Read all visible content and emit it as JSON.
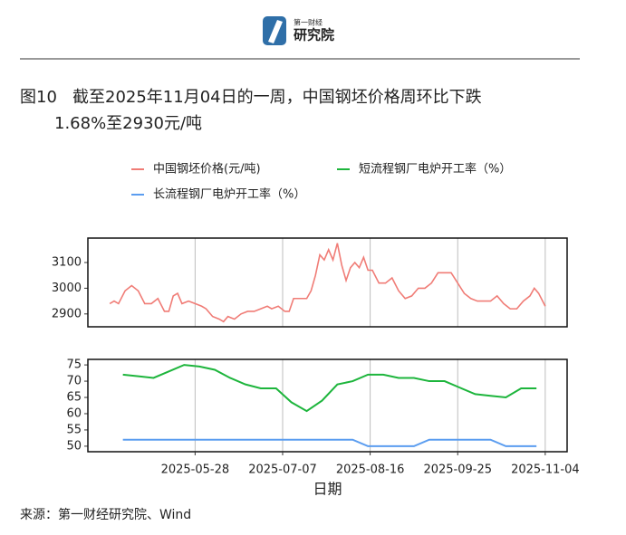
{
  "logo": {
    "top": "第一财经",
    "main": "研究院"
  },
  "figure_title": {
    "label": "图10",
    "line1": "截至2025年11月04日的一周，中国钢坯价格周环比下跌",
    "line2": "1.68%至2930元/吨"
  },
  "source": "来源：第一财经研究院、Wind",
  "chart_data": [
    {
      "type": "line",
      "x": [
        "2025-04-19",
        "2025-04-21",
        "2025-04-23",
        "2025-04-26",
        "2025-04-29",
        "2025-05-02",
        "2025-05-05",
        "2025-05-08",
        "2025-05-11",
        "2025-05-14",
        "2025-05-16",
        "2025-05-18",
        "2025-05-20",
        "2025-05-22",
        "2025-05-25",
        "2025-05-28",
        "2025-05-31",
        "2025-06-02",
        "2025-06-05",
        "2025-06-08",
        "2025-06-10",
        "2025-06-12",
        "2025-06-15",
        "2025-06-18",
        "2025-06-21",
        "2025-06-24",
        "2025-06-27",
        "2025-06-30",
        "2025-07-02",
        "2025-07-05",
        "2025-07-08",
        "2025-07-10",
        "2025-07-12",
        "2025-07-15",
        "2025-07-18",
        "2025-07-20",
        "2025-07-22",
        "2025-07-24",
        "2025-07-26",
        "2025-07-28",
        "2025-07-30",
        "2025-08-01",
        "2025-08-03",
        "2025-08-05",
        "2025-08-07",
        "2025-08-09",
        "2025-08-11",
        "2025-08-13",
        "2025-08-15",
        "2025-08-17",
        "2025-08-20",
        "2025-08-23",
        "2025-08-26",
        "2025-08-29",
        "2025-09-01",
        "2025-09-04",
        "2025-09-07",
        "2025-09-10",
        "2025-09-13",
        "2025-09-16",
        "2025-09-19",
        "2025-09-22",
        "2025-09-25",
        "2025-09-28",
        "2025-10-01",
        "2025-10-04",
        "2025-10-07",
        "2025-10-10",
        "2025-10-13",
        "2025-10-16",
        "2025-10-19",
        "2025-10-22",
        "2025-10-25",
        "2025-10-28",
        "2025-10-30",
        "2025-11-01",
        "2025-11-04"
      ],
      "series": [
        {
          "name": "中国钢坯价格(元/吨)",
          "color": "#f07c76",
          "values": [
            2940,
            2950,
            2940,
            2990,
            3010,
            2990,
            2940,
            2940,
            2960,
            2910,
            2910,
            2970,
            2980,
            2940,
            2950,
            2940,
            2930,
            2920,
            2890,
            2880,
            2870,
            2890,
            2880,
            2900,
            2910,
            2910,
            2920,
            2930,
            2920,
            2930,
            2910,
            2910,
            2960,
            2960,
            2960,
            2990,
            3050,
            3130,
            3110,
            3150,
            3110,
            3175,
            3090,
            3030,
            3080,
            3100,
            3080,
            3120,
            3070,
            3070,
            3020,
            3020,
            3040,
            2990,
            2960,
            2970,
            3000,
            3000,
            3020,
            3060,
            3060,
            3060,
            3020,
            2980,
            2960,
            2950,
            2950,
            2950,
            2970,
            2940,
            2920,
            2920,
            2950,
            2970,
            3000,
            2980,
            2930
          ]
        }
      ],
      "ylim": [
        2850,
        3195
      ],
      "yticks": [
        2900,
        3000,
        3100
      ]
    },
    {
      "type": "line",
      "x": [
        "2025-04-25",
        "2025-05-02",
        "2025-05-09",
        "2025-05-16",
        "2025-05-23",
        "2025-05-30",
        "2025-06-06",
        "2025-06-13",
        "2025-06-20",
        "2025-06-27",
        "2025-07-04",
        "2025-07-11",
        "2025-07-18",
        "2025-07-25",
        "2025-08-01",
        "2025-08-08",
        "2025-08-15",
        "2025-08-22",
        "2025-08-29",
        "2025-09-05",
        "2025-09-12",
        "2025-09-19",
        "2025-09-26",
        "2025-10-03",
        "2025-10-10",
        "2025-10-17",
        "2025-10-24",
        "2025-10-31"
      ],
      "series": [
        {
          "name": "短流程钢厂电炉开工率（%）",
          "color": "#1db53c",
          "values": [
            72,
            71.5,
            71,
            73,
            75,
            74.5,
            73.5,
            71,
            69,
            67.8,
            67.8,
            63.5,
            60.8,
            64,
            69,
            70,
            72,
            72,
            71,
            71,
            70,
            70,
            68,
            66,
            65.5,
            65,
            67.8,
            67.8
          ]
        },
        {
          "name": "长流程钢厂电炉开工率（%）",
          "color": "#5b9df0",
          "values": [
            52,
            52,
            52,
            52,
            52,
            52,
            52,
            52,
            52,
            52,
            52,
            52,
            52,
            52,
            52,
            52,
            50,
            50,
            50,
            50,
            52,
            52,
            52,
            52,
            52,
            50,
            50,
            50
          ]
        }
      ],
      "ylim": [
        48.3,
        76.7
      ],
      "yticks": [
        50,
        55,
        60,
        65,
        70,
        75
      ],
      "xlim": [
        "2025-04-09",
        "2025-11-14"
      ],
      "xticks": [
        "2025-05-28",
        "2025-07-07",
        "2025-08-16",
        "2025-09-25",
        "2025-11-04"
      ],
      "xlabel": "日期",
      "grid": true
    }
  ]
}
